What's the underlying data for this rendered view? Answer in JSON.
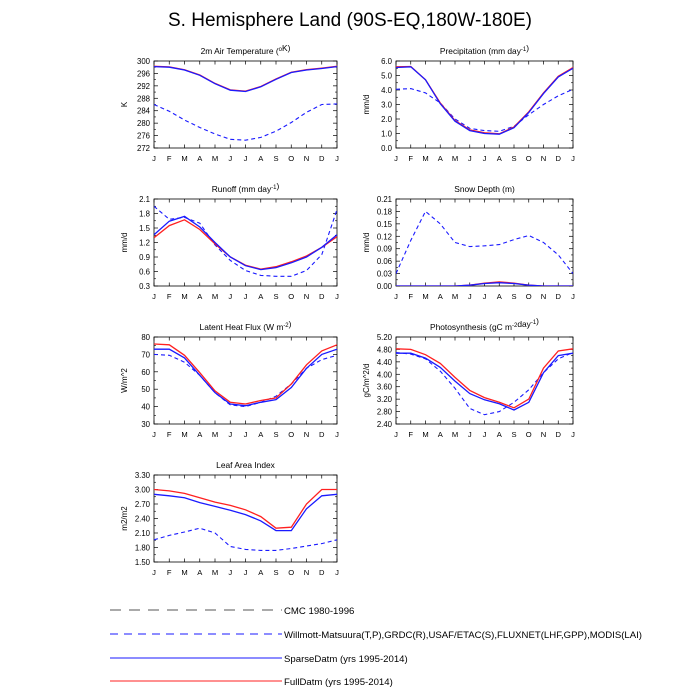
{
  "figure": {
    "title": "S. Hemisphere Land (90S-EQ,180W-180E)"
  },
  "months": [
    "J",
    "F",
    "M",
    "A",
    "M",
    "J",
    "J",
    "A",
    "S",
    "O",
    "N",
    "D",
    "J"
  ],
  "legend": [
    {
      "label": "CMC 1980-1996",
      "color": "#1a1aff",
      "dash": "dash-long"
    },
    {
      "label": "Willmott-Matsuura(T,P),GRDC(R),USAF/ETAC(S),FLUXNET(LHF,GPP),MODIS(LAI)",
      "color": "#1a1aff",
      "dash": "dash"
    },
    {
      "label": "SparseDatm (yrs 1995-2014)",
      "color": "#1a1aff",
      "dash": "solid"
    },
    {
      "label": "FullDatm (yrs 1995-2014)",
      "color": "#ff2020",
      "dash": "solid"
    }
  ],
  "chart_data": [
    {
      "type": "line",
      "title_main": "2m Air Temperature (",
      "title_sup": "o",
      "title_end": "K)",
      "ylabel": "K",
      "ylim": [
        272,
        300
      ],
      "yticks": [
        "272",
        "276",
        "280",
        "284",
        "288",
        "292",
        "296",
        "300"
      ],
      "yticks_minor": [
        "274",
        "278",
        "282",
        "286",
        "290",
        "294",
        "298"
      ],
      "series": [
        {
          "name": "Willmott-Matsuura(T,P),GRDC(R),USAF/ETAC(S),FLUXNET(LHF,GPP),MODIS(LAI)",
          "style": "obs",
          "values": [
            286,
            283.8,
            281.0,
            278.6,
            276.5,
            274.8,
            274.5,
            275.4,
            277.4,
            280.2,
            283.5,
            286.0,
            286.2
          ]
        },
        {
          "name": "FullDatm (yrs 1995-2014)",
          "style": "full",
          "values": [
            298.3,
            298.1,
            297.2,
            295.5,
            292.8,
            290.7,
            290.3,
            291.8,
            294.2,
            296.4,
            297.2,
            297.7,
            298.3
          ]
        },
        {
          "name": "SparseDatm (yrs 1995-2014)",
          "style": "sparse",
          "values": [
            298.2,
            298.0,
            297.1,
            295.4,
            292.7,
            290.6,
            290.2,
            291.7,
            294.1,
            296.3,
            297.1,
            297.6,
            298.2
          ]
        }
      ]
    },
    {
      "type": "line",
      "title_main": "Precipitation (mm day",
      "title_sup": "-1",
      "title_end": ")",
      "ylabel": "mm/d",
      "ylim": [
        0,
        6
      ],
      "yticks": [
        "0.0",
        "1.0",
        "2.0",
        "3.0",
        "4.0",
        "5.0",
        "6.0"
      ],
      "yticks_minor": [
        "0.5",
        "1.5",
        "2.5",
        "3.5",
        "4.5",
        "5.5"
      ],
      "series": [
        {
          "name": "Willmott-Matsuura(T,P),GRDC(R),USAF/ETAC(S),FLUXNET(LHF,GPP),MODIS(LAI)",
          "style": "obs",
          "values": [
            4.05,
            4.1,
            3.8,
            3.1,
            2.0,
            1.35,
            1.2,
            1.15,
            1.5,
            2.3,
            3.0,
            3.6,
            4.05
          ]
        },
        {
          "name": "FullDatm (yrs 1995-2014)",
          "style": "full",
          "values": [
            5.6,
            5.62,
            4.7,
            3.1,
            1.9,
            1.25,
            1.05,
            0.98,
            1.45,
            2.5,
            3.8,
            4.95,
            5.55
          ]
        },
        {
          "name": "SparseDatm (yrs 1995-2014)",
          "style": "sparse",
          "values": [
            5.55,
            5.6,
            4.7,
            3.05,
            1.85,
            1.2,
            1.0,
            0.95,
            1.4,
            2.45,
            3.75,
            4.9,
            5.5
          ]
        }
      ]
    },
    {
      "type": "line",
      "title_main": "Runoff (mm day",
      "title_sup": "-1",
      "title_end": ")",
      "ylabel": "mm/d",
      "ylim": [
        0.3,
        2.1
      ],
      "yticks": [
        "0.3",
        "0.6",
        "0.9",
        "1.2",
        "1.5",
        "1.8",
        "2.1"
      ],
      "yticks_minor": [
        "0.45",
        "0.75",
        "1.05",
        "1.35",
        "1.65",
        "1.95"
      ],
      "series": [
        {
          "name": "Willmott-Matsuura(T,P),GRDC(R),USAF/ETAC(S),FLUXNET(LHF,GPP),MODIS(LAI)",
          "style": "obs",
          "values": [
            1.95,
            1.68,
            1.72,
            1.6,
            1.15,
            0.83,
            0.62,
            0.52,
            0.5,
            0.5,
            0.62,
            0.95,
            1.88
          ]
        },
        {
          "name": "FullDatm (yrs 1995-2014)",
          "style": "full",
          "values": [
            1.3,
            1.55,
            1.67,
            1.47,
            1.17,
            0.9,
            0.73,
            0.65,
            0.7,
            0.8,
            0.92,
            1.1,
            1.32
          ]
        },
        {
          "name": "SparseDatm (yrs 1995-2014)",
          "style": "sparse",
          "values": [
            1.36,
            1.64,
            1.74,
            1.52,
            1.2,
            0.9,
            0.72,
            0.64,
            0.68,
            0.78,
            0.9,
            1.1,
            1.36
          ]
        }
      ]
    },
    {
      "type": "line",
      "title_main": "Snow Depth (m)",
      "title_sup": "",
      "title_end": "",
      "ylabel": "mm/d",
      "ylim": [
        0,
        0.21
      ],
      "yticks": [
        "0.00",
        "0.03",
        "0.06",
        "0.09",
        "0.12",
        "0.15",
        "0.18",
        "0.21"
      ],
      "yticks_minor": [
        "0.015",
        "0.045",
        "0.075",
        "0.105",
        "0.135",
        "0.165",
        "0.195"
      ],
      "series": [
        {
          "name": "Willmott-Matsuura(T,P),GRDC(R),USAF/ETAC(S),FLUXNET(LHF,GPP),MODIS(LAI)",
          "style": "obs",
          "values": [
            0.03,
            0.11,
            0.18,
            0.15,
            0.105,
            0.095,
            0.097,
            0.1,
            0.112,
            0.122,
            0.105,
            0.075,
            0.03
          ]
        },
        {
          "name": "FullDatm (yrs 1995-2014)",
          "style": "full",
          "values": [
            0.0,
            0.0,
            0.0,
            0.0,
            0.0,
            0.002,
            0.007,
            0.01,
            0.007,
            0.002,
            0.0,
            0.0,
            0.0
          ]
        },
        {
          "name": "SparseDatm (yrs 1995-2014)",
          "style": "sparse",
          "values": [
            0.0,
            0.0,
            0.0,
            0.0,
            0.0,
            0.002,
            0.006,
            0.008,
            0.006,
            0.002,
            0.0,
            0.0,
            0.0
          ]
        }
      ]
    },
    {
      "type": "line",
      "title_main": "Latent Heat Flux (W m",
      "title_sup": "-2",
      "title_end": ")",
      "ylabel": "W/m^2",
      "ylim": [
        30,
        80
      ],
      "yticks": [
        "30",
        "40",
        "50",
        "60",
        "70",
        "80"
      ],
      "yticks_minor": [
        "35",
        "45",
        "55",
        "65",
        "75"
      ],
      "series": [
        {
          "name": "Willmott-Matsuura(T,P),GRDC(R),USAF/ETAC(S),FLUXNET(LHF,GPP),MODIS(LAI)",
          "style": "obs",
          "values": [
            70,
            69.5,
            65.5,
            58,
            48,
            41,
            40,
            42.5,
            46,
            53,
            62,
            67,
            69.5
          ]
        },
        {
          "name": "FullDatm (yrs 1995-2014)",
          "style": "full",
          "values": [
            76,
            75.5,
            69.5,
            59.5,
            49,
            42.5,
            41.5,
            43.5,
            45,
            53,
            64,
            72,
            75.5
          ]
        },
        {
          "name": "SparseDatm (yrs 1995-2014)",
          "style": "sparse",
          "values": [
            73,
            73,
            68,
            58,
            48,
            41.5,
            40.5,
            42.5,
            44,
            51,
            62,
            70,
            73
          ]
        }
      ]
    },
    {
      "type": "line",
      "title_main": "Photosynthesis (gC m",
      "title_sup": "-2",
      "title_end": "day",
      "title_sup2": "-1",
      "title_end2": ")",
      "ylabel": "gC/m^2/d",
      "ylim": [
        2.4,
        5.2
      ],
      "yticks": [
        "2.40",
        "2.80",
        "3.20",
        "3.60",
        "4.00",
        "4.40",
        "4.80",
        "5.20"
      ],
      "yticks_minor": [
        "2.60",
        "3.00",
        "3.40",
        "3.80",
        "4.20",
        "4.60",
        "5.00"
      ],
      "series": [
        {
          "name": "Willmott-Matsuura(T,P),GRDC(R),USAF/ETAC(S),FLUXNET(LHF,GPP),MODIS(LAI)",
          "style": "obs",
          "values": [
            4.7,
            4.65,
            4.5,
            4.1,
            3.55,
            2.9,
            2.7,
            2.8,
            3.1,
            3.5,
            4.05,
            4.5,
            4.7
          ]
        },
        {
          "name": "FullDatm (yrs 1995-2014)",
          "style": "full",
          "values": [
            4.82,
            4.8,
            4.63,
            4.35,
            3.9,
            3.48,
            3.25,
            3.1,
            2.92,
            3.2,
            4.2,
            4.75,
            4.82
          ]
        },
        {
          "name": "SparseDatm (yrs 1995-2014)",
          "style": "sparse",
          "values": [
            4.68,
            4.68,
            4.52,
            4.22,
            3.78,
            3.38,
            3.18,
            3.05,
            2.85,
            3.1,
            4.05,
            4.6,
            4.68
          ]
        }
      ]
    },
    {
      "type": "line",
      "title_main": "Leaf Area Index",
      "title_sup": "",
      "title_end": "",
      "ylabel": "m2/m2",
      "ylim": [
        1.5,
        3.3
      ],
      "yticks": [
        "1.50",
        "1.80",
        "2.10",
        "2.40",
        "2.70",
        "3.00",
        "3.30"
      ],
      "yticks_minor": [
        "1.65",
        "1.95",
        "2.25",
        "2.55",
        "2.85",
        "3.15"
      ],
      "series": [
        {
          "name": "Willmott-Matsuura(T,P),GRDC(R),USAF/ETAC(S),FLUXNET(LHF,GPP),MODIS(LAI)",
          "style": "obs",
          "values": [
            1.96,
            2.05,
            2.12,
            2.2,
            2.1,
            1.82,
            1.76,
            1.74,
            1.74,
            1.78,
            1.83,
            1.88,
            1.96
          ]
        },
        {
          "name": "FullDatm (yrs 1995-2014)",
          "style": "full",
          "values": [
            3.0,
            2.97,
            2.92,
            2.83,
            2.74,
            2.67,
            2.58,
            2.44,
            2.2,
            2.22,
            2.7,
            3.0,
            3.0
          ]
        },
        {
          "name": "SparseDatm (yrs 1995-2014)",
          "style": "sparse",
          "values": [
            2.9,
            2.87,
            2.83,
            2.73,
            2.65,
            2.57,
            2.48,
            2.35,
            2.15,
            2.15,
            2.6,
            2.87,
            2.9
          ]
        }
      ]
    }
  ]
}
